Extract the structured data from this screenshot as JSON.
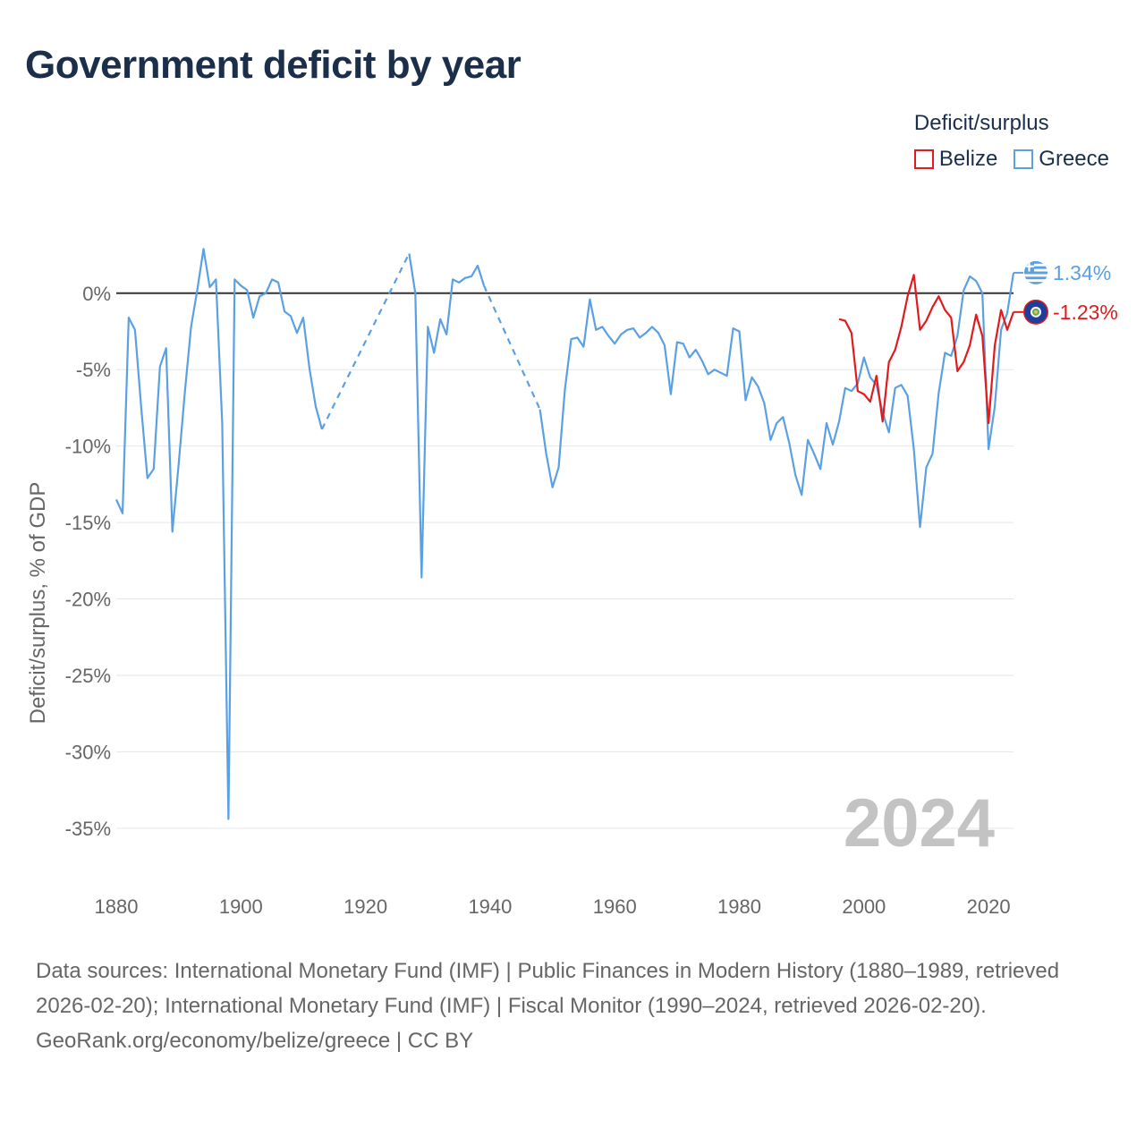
{
  "title": "Government deficit by year",
  "legend": {
    "title": "Deficit/surplus",
    "items": [
      {
        "label": "Belize",
        "color": "#e31a1c"
      },
      {
        "label": "Greece",
        "color": "#5aa0e3"
      }
    ]
  },
  "footer": {
    "sources": "Data sources: International Monetary Fund (IMF) | Public Finances in Modern History (1880–1989, retrieved 2026-02-20); International Monetary Fund (IMF) | Fiscal Monitor (1990–2024, retrieved 2026-02-20).",
    "credit": "GeoRank.org/economy/belize/greece | CC BY"
  },
  "chart_data": {
    "type": "line",
    "ylabel": "Deficit/surplus, % of GDP",
    "xlim": [
      1880,
      2024
    ],
    "ylim": [
      -37,
      3.5
    ],
    "xticks": [
      1880,
      1900,
      1920,
      1940,
      1960,
      1980,
      2000,
      2020
    ],
    "yticks": [
      0,
      -5,
      -10,
      -15,
      -20,
      -25,
      -30,
      -35
    ],
    "ytick_labels": [
      "0%",
      "-5%",
      "-10%",
      "-15%",
      "-20%",
      "-25%",
      "-30%",
      "-35%"
    ],
    "year_watermark": "2024",
    "series": [
      {
        "name": "Greece",
        "color": "#5aa0e3",
        "end_label": "1.34%",
        "points": [
          [
            1880,
            -13.5
          ],
          [
            1881,
            -14.4
          ],
          [
            1882,
            -1.6
          ],
          [
            1883,
            -2.4
          ],
          [
            1884,
            -7.5
          ],
          [
            1885,
            -12.1
          ],
          [
            1886,
            -11.5
          ],
          [
            1887,
            -4.8
          ],
          [
            1888,
            -3.6
          ],
          [
            1889,
            -15.6
          ],
          [
            1890,
            -11.2
          ],
          [
            1891,
            -6.5
          ],
          [
            1892,
            -2.2
          ],
          [
            1893,
            0.2
          ],
          [
            1894,
            2.9
          ],
          [
            1895,
            0.4
          ],
          [
            1896,
            0.9
          ],
          [
            1897,
            -8.5
          ],
          [
            1898,
            -34.4
          ],
          [
            1899,
            0.9
          ],
          [
            1900,
            0.5
          ],
          [
            1901,
            0.2
          ],
          [
            1902,
            -1.6
          ],
          [
            1903,
            -0.2
          ],
          [
            1904,
            0.0
          ],
          [
            1905,
            0.9
          ],
          [
            1906,
            0.7
          ],
          [
            1907,
            -1.2
          ],
          [
            1908,
            -1.5
          ],
          [
            1909,
            -2.6
          ],
          [
            1910,
            -1.6
          ],
          [
            1911,
            -4.9
          ],
          [
            1912,
            -7.4
          ],
          [
            1913,
            -8.9
          ],
          [
            1927,
            2.6
          ],
          [
            1928,
            0.0
          ],
          [
            1929,
            -18.6
          ],
          [
            1930,
            -2.2
          ],
          [
            1931,
            -3.9
          ],
          [
            1932,
            -1.7
          ],
          [
            1933,
            -2.7
          ],
          [
            1934,
            0.9
          ],
          [
            1935,
            0.7
          ],
          [
            1936,
            1.0
          ],
          [
            1937,
            1.1
          ],
          [
            1938,
            1.8
          ],
          [
            1939,
            0.5
          ],
          [
            1948,
            -7.6
          ],
          [
            1949,
            -10.5
          ],
          [
            1950,
            -12.7
          ],
          [
            1951,
            -11.4
          ],
          [
            1952,
            -6.3
          ],
          [
            1953,
            -3.0
          ],
          [
            1954,
            -2.9
          ],
          [
            1955,
            -3.5
          ],
          [
            1956,
            -0.4
          ],
          [
            1957,
            -2.4
          ],
          [
            1958,
            -2.2
          ],
          [
            1959,
            -2.8
          ],
          [
            1960,
            -3.3
          ],
          [
            1961,
            -2.7
          ],
          [
            1962,
            -2.4
          ],
          [
            1963,
            -2.3
          ],
          [
            1964,
            -2.9
          ],
          [
            1965,
            -2.6
          ],
          [
            1966,
            -2.2
          ],
          [
            1967,
            -2.6
          ],
          [
            1968,
            -3.4
          ],
          [
            1969,
            -6.6
          ],
          [
            1970,
            -3.2
          ],
          [
            1971,
            -3.3
          ],
          [
            1972,
            -4.2
          ],
          [
            1973,
            -3.7
          ],
          [
            1974,
            -4.4
          ],
          [
            1975,
            -5.3
          ],
          [
            1976,
            -5.0
          ],
          [
            1977,
            -5.2
          ],
          [
            1978,
            -5.4
          ],
          [
            1979,
            -2.3
          ],
          [
            1980,
            -2.5
          ],
          [
            1981,
            -7.0
          ],
          [
            1982,
            -5.5
          ],
          [
            1983,
            -6.1
          ],
          [
            1984,
            -7.2
          ],
          [
            1985,
            -9.6
          ],
          [
            1986,
            -8.5
          ],
          [
            1987,
            -8.1
          ],
          [
            1988,
            -9.8
          ],
          [
            1989,
            -11.9
          ],
          [
            1990,
            -13.2
          ],
          [
            1991,
            -9.6
          ],
          [
            1992,
            -10.5
          ],
          [
            1993,
            -11.5
          ],
          [
            1994,
            -8.5
          ],
          [
            1995,
            -9.9
          ],
          [
            1996,
            -8.4
          ],
          [
            1997,
            -6.2
          ],
          [
            1998,
            -6.4
          ],
          [
            1999,
            -5.9
          ],
          [
            2000,
            -4.2
          ],
          [
            2001,
            -5.5
          ],
          [
            2002,
            -6.0
          ],
          [
            2003,
            -7.8
          ],
          [
            2004,
            -9.1
          ],
          [
            2005,
            -6.2
          ],
          [
            2006,
            -6.0
          ],
          [
            2007,
            -6.7
          ],
          [
            2008,
            -10.2
          ],
          [
            2009,
            -15.3
          ],
          [
            2010,
            -11.4
          ],
          [
            2011,
            -10.5
          ],
          [
            2012,
            -6.5
          ],
          [
            2013,
            -3.9
          ],
          [
            2014,
            -4.1
          ],
          [
            2015,
            -2.8
          ],
          [
            2016,
            0.2
          ],
          [
            2017,
            1.1
          ],
          [
            2018,
            0.8
          ],
          [
            2019,
            0.0
          ],
          [
            2020,
            -10.2
          ],
          [
            2021,
            -7.4
          ],
          [
            2022,
            -2.4
          ],
          [
            2023,
            -1.3
          ],
          [
            2024,
            1.34
          ]
        ],
        "dashed_gaps": [
          [
            1913,
            1927
          ],
          [
            1939,
            1948
          ]
        ]
      },
      {
        "name": "Belize",
        "color": "#e31a1c",
        "end_label": "-1.23%",
        "points": [
          [
            1996,
            -1.7
          ],
          [
            1997,
            -1.8
          ],
          [
            1998,
            -2.6
          ],
          [
            1999,
            -6.4
          ],
          [
            2000,
            -6.6
          ],
          [
            2001,
            -7.1
          ],
          [
            2002,
            -5.4
          ],
          [
            2003,
            -8.4
          ],
          [
            2004,
            -4.5
          ],
          [
            2005,
            -3.7
          ],
          [
            2006,
            -2.2
          ],
          [
            2007,
            -0.2
          ],
          [
            2008,
            1.2
          ],
          [
            2009,
            -2.4
          ],
          [
            2010,
            -1.8
          ],
          [
            2011,
            -0.9
          ],
          [
            2012,
            -0.2
          ],
          [
            2013,
            -1.1
          ],
          [
            2014,
            -1.6
          ],
          [
            2015,
            -5.1
          ],
          [
            2016,
            -4.5
          ],
          [
            2017,
            -3.4
          ],
          [
            2018,
            -1.4
          ],
          [
            2019,
            -2.8
          ],
          [
            2020,
            -8.5
          ],
          [
            2021,
            -3.4
          ],
          [
            2022,
            -1.1
          ],
          [
            2023,
            -2.4
          ],
          [
            2024,
            -1.23
          ]
        ],
        "dashed_gaps": []
      }
    ]
  }
}
